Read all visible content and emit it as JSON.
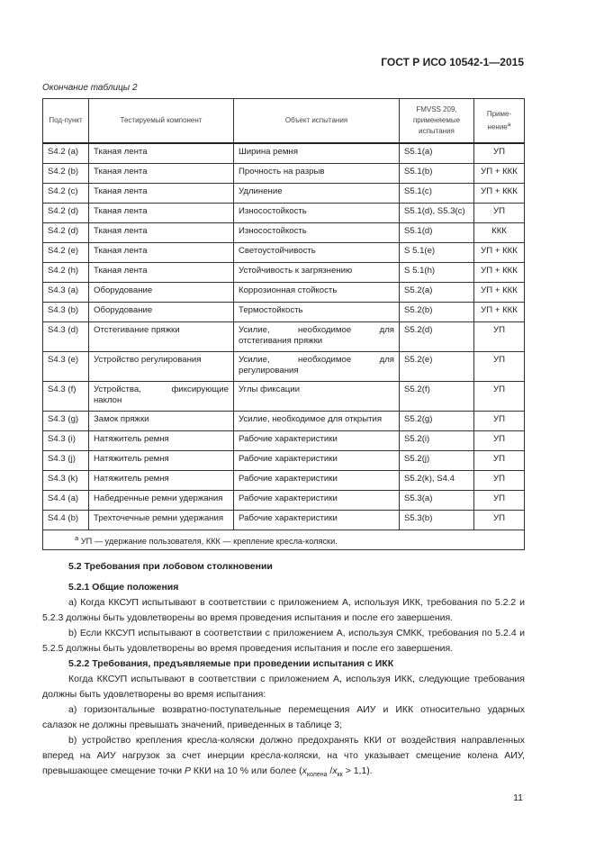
{
  "header": "ГОСТ Р ИСО 10542-1—2015",
  "caption": "Окончание таблицы 2",
  "table": {
    "columns": [
      "Под-пункт",
      "Тестируемый компонент",
      "Объект испытания",
      "FMVSS 209, применяемые испытания",
      "Приме-нение"
    ],
    "footnote_mark": "a",
    "rows": [
      [
        "S4.2 (a)",
        "Тканая лента",
        "Ширина ремня",
        "S5.1(a)",
        "УП"
      ],
      [
        "S4.2 (b)",
        "Тканая лента",
        "Прочность на разрыв",
        "S5.1(b)",
        "УП + ККК"
      ],
      [
        "S4.2 (c)",
        "Тканая лента",
        "Удлинение",
        "S5.1(c)",
        "УП + ККК"
      ],
      [
        "S4.2 (d)",
        "Тканая лента",
        "Износостойкость",
        "S5.1(d), S5.3(c)",
        "УП"
      ],
      [
        "S4.2 (d)",
        "Тканая лента",
        "Износостойкость",
        "S5.1(d)",
        "ККК"
      ],
      [
        "S4.2 (e)",
        "Тканая лента",
        "Светоустойчивость",
        "S 5.1(e)",
        "УП + ККК"
      ],
      [
        "S4.2 (h)",
        "Тканая лента",
        "Устойчивость к загрязнению",
        "S 5.1(h)",
        "УП + ККК"
      ],
      [
        "S4.3 (a)",
        "Оборудование",
        "Коррозионная стойкость",
        "S5.2(a)",
        "УП + ККК"
      ],
      [
        "S4.3 (b)",
        "Оборудование",
        "Термостойкость",
        "S5.2(b)",
        "УП + ККК"
      ],
      [
        "S4.3 (d)",
        "Отстегивание пряжки",
        "Усилие, необходимое для отстегивания пряжки",
        "S5.2(d)",
        "УП"
      ],
      [
        "S4.3 (e)",
        "Устройство регулирования",
        "Усилие, необходимое для регулирования",
        "S5.2(e)",
        "УП"
      ],
      [
        "S4.3 (f)",
        "Устройства, фиксирующие наклон",
        "Углы фиксации",
        "S5.2(f)",
        "УП"
      ],
      [
        "S4.3 (g)",
        "Замок пряжки",
        "Усилие, необходимое для открытия",
        "S5.2(g)",
        "УП"
      ],
      [
        "S4.3 (i)",
        "Натяжитель ремня",
        "Рабочие характеристики",
        "S5.2(i)",
        "УП"
      ],
      [
        "S4.3 (j)",
        "Натяжитель ремня",
        "Рабочие характеристики",
        "S5.2(j)",
        "УП"
      ],
      [
        "S4.3 (k)",
        "Натяжитель ремня",
        "Рабочие характеристики",
        "S5.2(k), S4.4",
        "УП"
      ],
      [
        "S4.4 (a)",
        "Набедренные ремни удержания",
        "Рабочие характеристики",
        "S5.3(a)",
        "УП"
      ],
      [
        "S4.4 (b)",
        "Трехточечные ремни удержания",
        "Рабочие характеристики",
        "S5.3(b)",
        "УП"
      ]
    ],
    "footnote": "УП — удержание пользователя, ККК — крепление кресла-коляски."
  },
  "body": {
    "h52": "5.2 Требования при лобовом столкновении",
    "h521": "5.2.1 Общие положения",
    "p1": "a) Когда ККСУП испытывают в соответствии с приложением А, используя ИКК, требования по 5.2.2 и 5.2.3 должны быть удовлетворены во время проведения испытания и после его завершения.",
    "p2": "b) Если ККСУП испытывают в соответствии с приложением А, используя СМКК, требования по 5.2.4 и 5.2.5 должны быть удовлетворены во время проведения испытания и после его завершения.",
    "h522": "5.2.2 Требования, предъявляемые при проведении испытания с ИКК",
    "p3": "Когда ККСУП испытывают в соответствии с приложением А, используя ИКК, следующие требования должны быть удовлетворены во время испытания:",
    "p4": "a) горизонтальные возвратно-поступательные перемещения АИУ и ИКК относительно ударных салазок не должны превышать значений, приведенных в таблице 3;",
    "p5a": "b) устройство крепления кресла-коляски должно предохранять ККИ от воздействия направленных вперед на АИУ нагрузок за счет инерции кресла-коляски, на что указывает смещение колена АИУ, превышающее смещение точки ",
    "p5P": "P",
    "p5b": " ККИ на 10 % или более (",
    "x": "x",
    "sub1": "колена",
    "slash": " /",
    "sub2": "кк",
    "p5c": " > 1,1)."
  },
  "page_number": "11"
}
